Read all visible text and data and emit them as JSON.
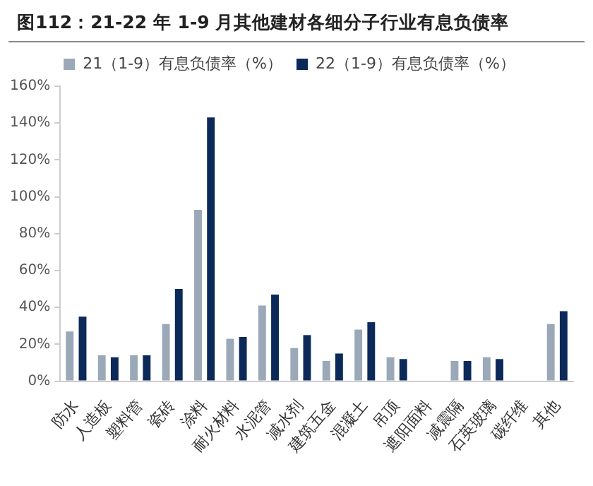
{
  "chart_data": {
    "type": "bar",
    "title": "图112：21-22 年 1-9 月其他建材各细分子行业有息负债率",
    "categories": [
      "防水",
      "人造板",
      "塑料管",
      "瓷砖",
      "涂料",
      "耐火材料",
      "水泥管",
      "减水剂",
      "建筑五金",
      "混凝土",
      "吊顶",
      "遮阳面料",
      "减震隔",
      "石英玻璃",
      "碳纤维",
      "其他"
    ],
    "series": [
      {
        "name": "21（1-9）有息负债率（%）",
        "color": "#9aa8b8",
        "values": [
          27,
          14,
          14,
          31,
          93,
          23,
          41,
          18,
          11,
          28,
          13,
          null,
          11,
          13,
          null,
          31
        ]
      },
      {
        "name": "22（1-9）有息负债率（%）",
        "color": "#0b2a5a",
        "values": [
          35,
          13,
          14,
          50,
          143,
          24,
          47,
          25,
          15,
          32,
          12,
          null,
          11,
          12,
          null,
          38
        ]
      }
    ],
    "ylim": [
      0,
      160
    ],
    "yticks": [
      {
        "value": 0,
        "label": "0%"
      },
      {
        "value": 20,
        "label": "20%"
      },
      {
        "value": 40,
        "label": "40%"
      },
      {
        "value": 60,
        "label": "60%"
      },
      {
        "value": 80,
        "label": "80%"
      },
      {
        "value": 100,
        "label": "100%"
      },
      {
        "value": 120,
        "label": "120%"
      },
      {
        "value": 140,
        "label": "140%"
      },
      {
        "value": 160,
        "label": "160%"
      }
    ],
    "grid": false,
    "legend": "top"
  }
}
